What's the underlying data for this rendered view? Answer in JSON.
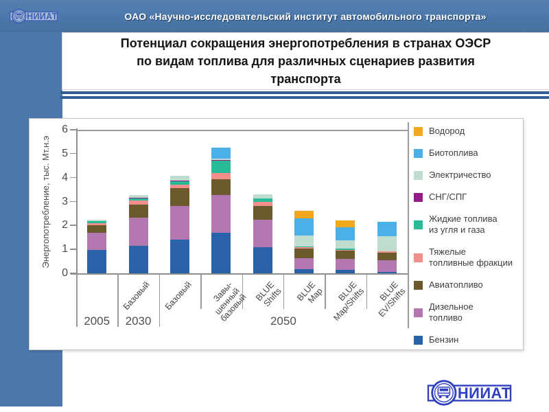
{
  "slide": {
    "header_title": "ОАО «Научно-исследовательский институт автомобильного транспорта»",
    "title": "Потенциал сокращения энергопотребления в странах ОЭСР по видам топлива для различных сценариев развития транспорта",
    "title_lines": [
      "Потенциал сокращения энергопотребления в странах ОЭСР",
      "по видам топлива для различных сценариев развития",
      "транспорта"
    ],
    "colors": {
      "header_blue": "#4c78ab",
      "divider_navy": "#2e5e93",
      "logo_blue": "#2f3fc0"
    }
  },
  "logo": {
    "text": "НИИАТ"
  },
  "chart_data": {
    "type": "bar",
    "stacked": true,
    "title": "",
    "ylabel": "Энергопотребление, тыс. Мт.н.э",
    "xlabel": "",
    "ylim": [
      0,
      6
    ],
    "yticks": [
      0,
      1,
      2,
      3,
      4,
      5,
      6
    ],
    "grid": false,
    "legend_position": "right",
    "categories": [
      "",
      "Базовый",
      "Базовый",
      "Завы-\nшенный\nбазовый",
      "BLUE\nShifts",
      "BLUE\nMap",
      "BLUE\nMap/Shifts",
      "BLUE\nEV/Shifts"
    ],
    "year_groups": [
      {
        "label": "2005",
        "from": 0,
        "to": 0
      },
      {
        "label": "2030",
        "from": 1,
        "to": 1
      },
      {
        "label": "2050",
        "from": 2,
        "to": 7
      }
    ],
    "series": [
      {
        "name": "Бензин",
        "legend_label": "Бензин",
        "color": "#2a62a9",
        "values": [
          0.97,
          1.15,
          1.42,
          1.7,
          1.08,
          0.18,
          0.15,
          0.05
        ]
      },
      {
        "name": "Дизельное топливо",
        "legend_label": "Дизельное\nтопливо",
        "color": "#b378b0",
        "values": [
          0.73,
          1.17,
          1.4,
          1.58,
          1.17,
          0.45,
          0.45,
          0.5
        ]
      },
      {
        "name": "Авиатопливо",
        "legend_label": "Авиатопливо",
        "color": "#6c5a2f",
        "values": [
          0.3,
          0.55,
          0.73,
          0.65,
          0.57,
          0.4,
          0.35,
          0.3
        ]
      },
      {
        "name": "Тяжелые топливные фракции",
        "legend_label": "Тяжелые\nтопливные фракции",
        "color": "#f28f8c",
        "values": [
          0.11,
          0.16,
          0.15,
          0.25,
          0.16,
          0.08,
          0.02,
          0.08
        ]
      },
      {
        "name": "Жидкие топлива из угля и газа",
        "legend_label": "Жидкие топлива\nиз угля и газа",
        "color": "#27bc97",
        "values": [
          0.07,
          0.1,
          0.15,
          0.55,
          0.14,
          0.02,
          0.06,
          0.0
        ]
      },
      {
        "name": "СНГ/СПГ",
        "legend_label": "СНГ/СПГ",
        "color": "#951c87",
        "values": [
          0.0,
          0.02,
          0.02,
          0.02,
          0.0,
          0.0,
          0.0,
          0.0
        ]
      },
      {
        "name": "Электричество",
        "legend_label": "Электричество",
        "color": "#bfddcf",
        "values": [
          0.06,
          0.12,
          0.2,
          0.05,
          0.17,
          0.46,
          0.34,
          0.63
        ]
      },
      {
        "name": "Биотоплива",
        "legend_label": "Биотоплива",
        "color": "#4bb0e8",
        "values": [
          0.0,
          0.0,
          0.0,
          0.45,
          0.0,
          0.71,
          0.54,
          0.6
        ]
      },
      {
        "name": "Водород",
        "legend_label": "Водород",
        "color": "#f3a71e",
        "values": [
          0.0,
          0.0,
          0.0,
          0.0,
          0.0,
          0.32,
          0.29,
          0.0
        ]
      }
    ]
  }
}
